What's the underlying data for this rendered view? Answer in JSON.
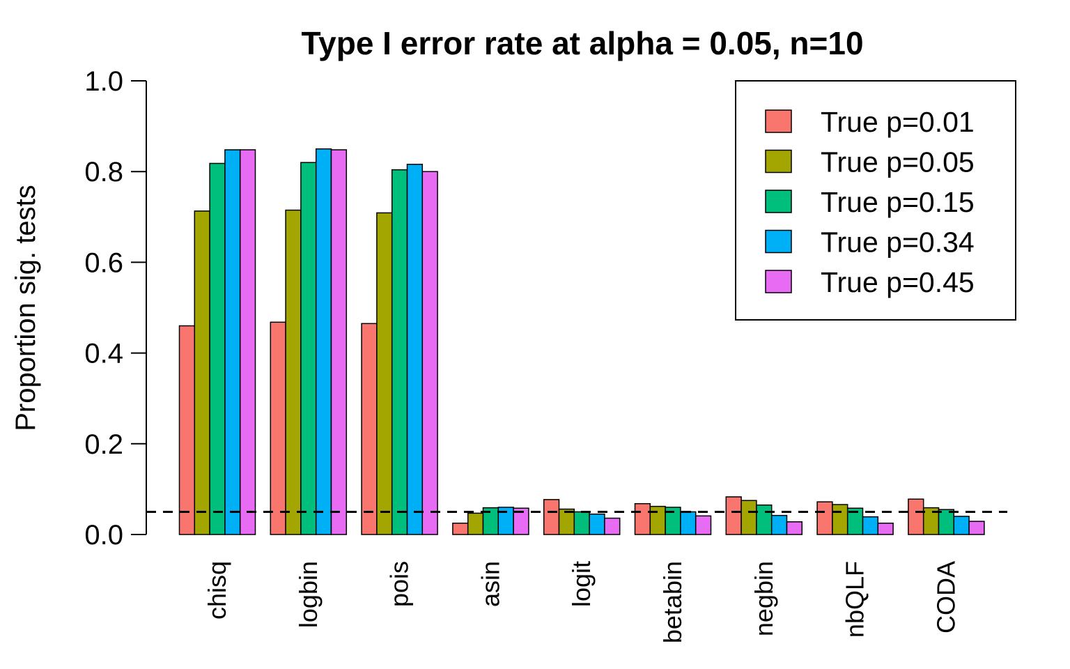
{
  "chart_data": {
    "type": "bar",
    "title": "Type I error rate at alpha = 0.05, n=10",
    "xlabel": "",
    "ylabel": "Proportion sig. tests",
    "ylim": [
      0,
      1.0
    ],
    "yticks": [
      "0.0",
      "0.2",
      "0.4",
      "0.6",
      "0.8",
      "1.0"
    ],
    "ytick_values": [
      0,
      0.2,
      0.4,
      0.6,
      0.8,
      1.0
    ],
    "reference_line": 0.05,
    "legend_position": "top-right",
    "grid": false,
    "categories": [
      "chisq",
      "logbin",
      "pois",
      "asin",
      "logit",
      "betabin",
      "negbin",
      "nbQLF",
      "CODA"
    ],
    "series": [
      {
        "name": "True p=0.01",
        "color": "#F8766D",
        "values": [
          0.46,
          0.468,
          0.465,
          0.025,
          0.077,
          0.068,
          0.083,
          0.072,
          0.078
        ]
      },
      {
        "name": "True p=0.05",
        "color": "#A3A500",
        "values": [
          0.713,
          0.715,
          0.709,
          0.047,
          0.056,
          0.062,
          0.075,
          0.066,
          0.059
        ]
      },
      {
        "name": "True p=0.15",
        "color": "#00BF7D",
        "values": [
          0.818,
          0.82,
          0.804,
          0.059,
          0.05,
          0.06,
          0.065,
          0.058,
          0.055
        ]
      },
      {
        "name": "True p=0.34",
        "color": "#00B0F6",
        "values": [
          0.848,
          0.85,
          0.816,
          0.06,
          0.045,
          0.05,
          0.042,
          0.039,
          0.04
        ]
      },
      {
        "name": "True p=0.45",
        "color": "#E76BF3",
        "values": [
          0.848,
          0.848,
          0.8,
          0.058,
          0.036,
          0.041,
          0.028,
          0.025,
          0.029
        ]
      }
    ]
  }
}
